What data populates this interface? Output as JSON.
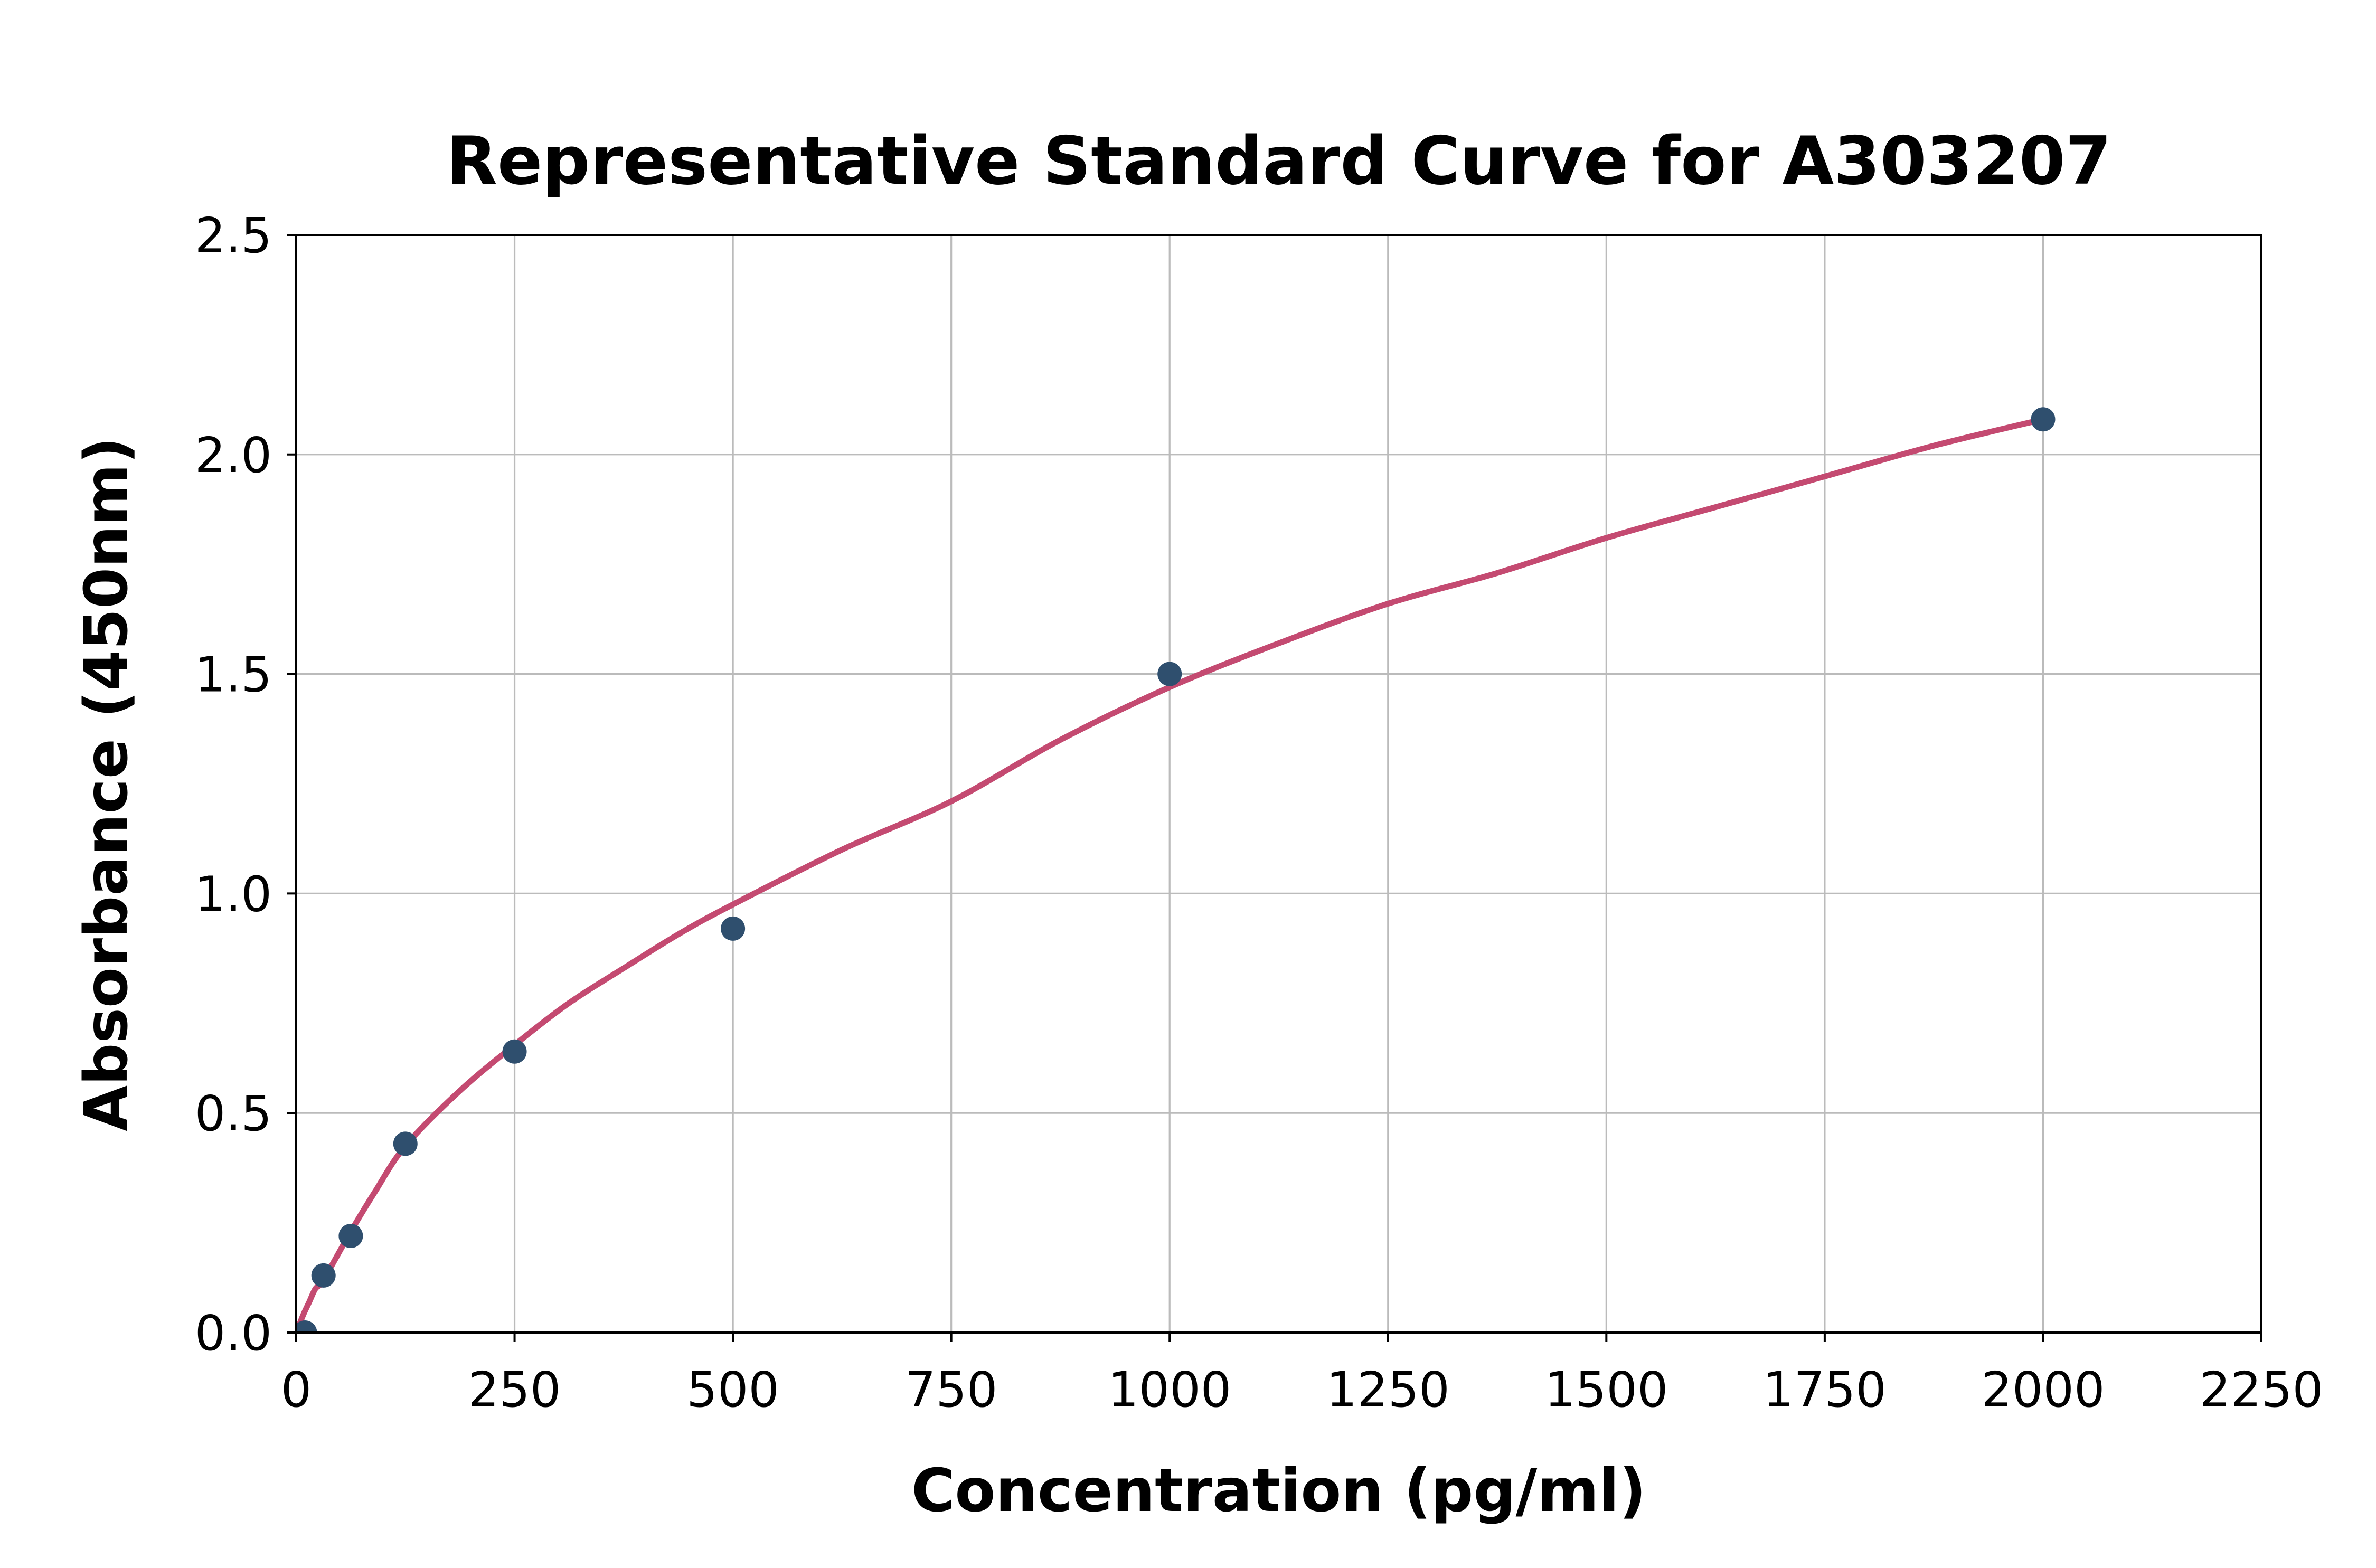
{
  "figure": {
    "background": "#ffffff"
  },
  "chart_data": {
    "type": "scatter",
    "title": "Representative Standard Curve for A303207",
    "xlabel": "Concentration (pg/ml)",
    "ylabel": "Absorbance (450nm)",
    "xlim": [
      0,
      2250
    ],
    "ylim": [
      0,
      2.5
    ],
    "x_ticks": [
      "0",
      "250",
      "500",
      "750",
      "1000",
      "1250",
      "1500",
      "1750",
      "2000",
      "2250"
    ],
    "y_ticks": [
      "0.0",
      "0.5",
      "1.0",
      "1.5",
      "2.0",
      "2.5"
    ],
    "grid": true,
    "legend": "none",
    "series": [
      {
        "name": "standard-points",
        "type": "scatter",
        "color": "#2f4f6e",
        "points": [
          [
            10,
            0.0
          ],
          [
            31.25,
            0.13
          ],
          [
            62.5,
            0.22
          ],
          [
            125,
            0.43
          ],
          [
            250,
            0.64
          ],
          [
            500,
            0.92
          ],
          [
            1000,
            1.5
          ],
          [
            2000,
            2.08
          ]
        ]
      },
      {
        "name": "fit-curve",
        "type": "line",
        "color": "#c44a71",
        "points": [
          [
            0,
            0.0
          ],
          [
            8,
            0.04
          ],
          [
            15,
            0.07
          ],
          [
            22,
            0.1
          ],
          [
            31.25,
            0.12
          ],
          [
            62.5,
            0.23
          ],
          [
            90,
            0.32
          ],
          [
            125,
            0.425
          ],
          [
            187,
            0.55
          ],
          [
            250,
            0.655
          ],
          [
            312,
            0.75
          ],
          [
            375,
            0.83
          ],
          [
            440,
            0.91
          ],
          [
            500,
            0.975
          ],
          [
            625,
            1.1
          ],
          [
            750,
            1.21
          ],
          [
            875,
            1.35
          ],
          [
            1000,
            1.47
          ],
          [
            1125,
            1.57
          ],
          [
            1250,
            1.66
          ],
          [
            1375,
            1.73
          ],
          [
            1500,
            1.81
          ],
          [
            1625,
            1.88
          ],
          [
            1750,
            1.95
          ],
          [
            1875,
            2.02
          ],
          [
            2000,
            2.08
          ]
        ]
      }
    ],
    "styles": {
      "grid_color": "#bbbbbb",
      "axis_color": "#000000",
      "text_color": "#000000",
      "marker_radius": 23,
      "curve_width": 11,
      "grid_width": 3.2,
      "spine_width": 4,
      "tick_length": 18,
      "tick_width": 4
    }
  }
}
